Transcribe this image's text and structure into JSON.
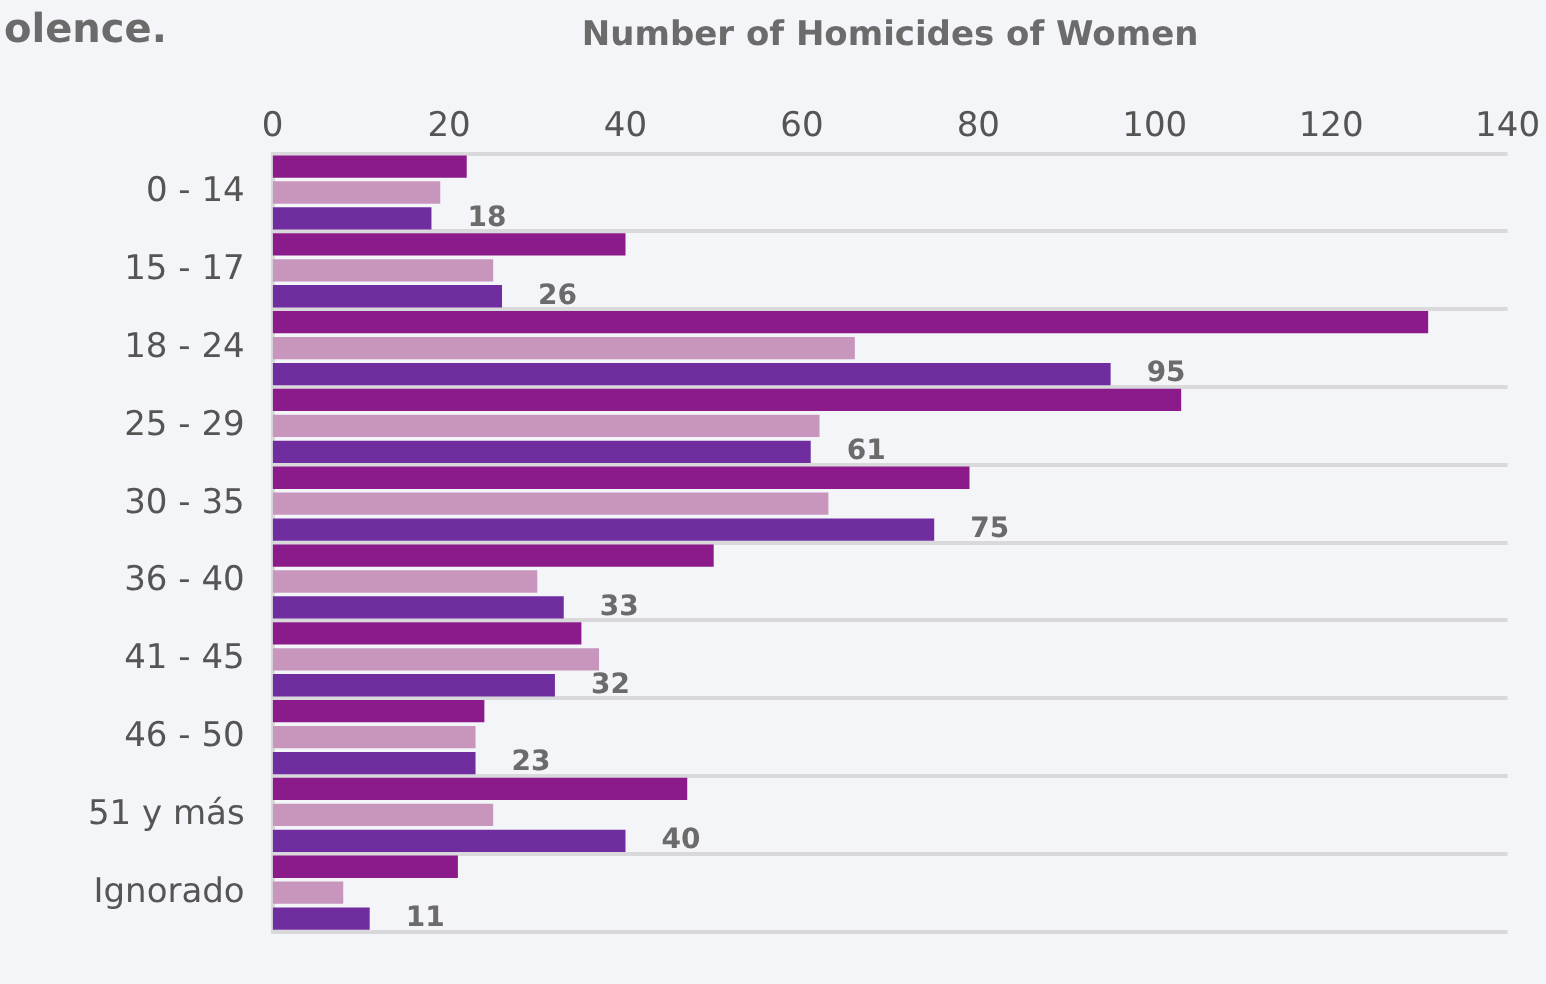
{
  "chart_data": {
    "type": "bar",
    "orientation": "horizontal",
    "xlabel": "Number of Homicides of Women",
    "annotations": [
      "olence."
    ],
    "categories": [
      "0 - 14",
      "15 - 17",
      "18 - 24",
      "25 - 29",
      "30 - 35",
      "36 - 40",
      "41 - 45",
      "46 - 50",
      "51 y más",
      "Ignorado"
    ],
    "series": [
      {
        "color": "#8b1a8a",
        "values": [
          22,
          40,
          131,
          103,
          79,
          50,
          35,
          24,
          47,
          21
        ]
      },
      {
        "color": "#c896bd",
        "values": [
          19,
          25,
          66,
          62,
          63,
          30,
          37,
          23,
          25,
          8
        ]
      },
      {
        "color": "#6f2da0",
        "values": [
          18,
          26,
          95,
          61,
          75,
          33,
          32,
          23,
          40,
          11
        ],
        "value_labels": [
          "18",
          "26",
          "95",
          "61",
          "75",
          "33",
          "32",
          "23",
          "40",
          "11"
        ]
      }
    ],
    "xlim": [
      0,
      140
    ],
    "xticks": [
      0,
      20,
      40,
      60,
      80,
      100,
      120,
      140
    ],
    "grid": "y",
    "legend": false
  }
}
